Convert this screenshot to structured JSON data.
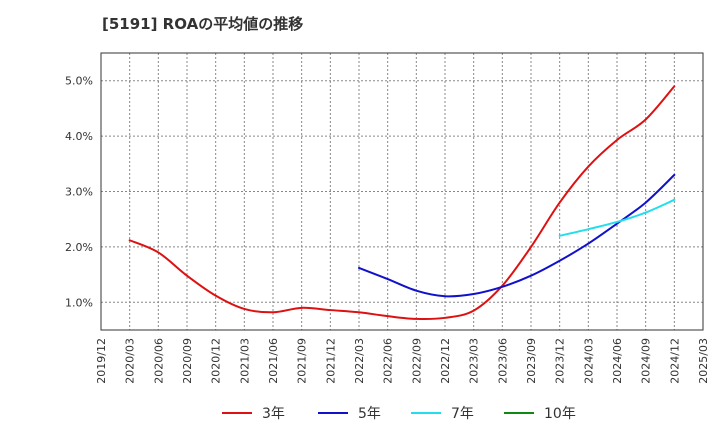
{
  "chart_data": {
    "type": "line",
    "title": "[5191]  ROAの平均値の推移",
    "x_tick_labels": [
      "2019/12",
      "2020/03",
      "2020/06",
      "2020/09",
      "2020/12",
      "2021/03",
      "2021/06",
      "2021/09",
      "2021/12",
      "2022/03",
      "2022/06",
      "2022/09",
      "2022/12",
      "2023/03",
      "2023/06",
      "2023/09",
      "2023/12",
      "2024/03",
      "2024/06",
      "2024/09",
      "2024/12",
      "2025/03"
    ],
    "y_tick_labels": [
      "1.0%",
      "2.0%",
      "3.0%",
      "4.0%",
      "5.0%"
    ],
    "y_ticks": [
      1.0,
      2.0,
      3.0,
      4.0,
      5.0
    ],
    "xlim": [
      "2019/12",
      "2025/03"
    ],
    "ylim": [
      0.5,
      5.5
    ],
    "grid": true,
    "legend_position": "bottom",
    "series": [
      {
        "name": "3年",
        "color": "#dd1111",
        "x": [
          "2020/03",
          "2020/06",
          "2020/09",
          "2020/12",
          "2021/03",
          "2021/06",
          "2021/09",
          "2021/12",
          "2022/03",
          "2022/06",
          "2022/09",
          "2022/12",
          "2023/03",
          "2023/06",
          "2023/09",
          "2023/12",
          "2024/03",
          "2024/06",
          "2024/09",
          "2024/12"
        ],
        "values": [
          2.12,
          1.9,
          1.48,
          1.12,
          0.88,
          0.82,
          0.9,
          0.86,
          0.82,
          0.75,
          0.7,
          0.72,
          0.85,
          1.3,
          2.0,
          2.8,
          3.45,
          3.93,
          4.3,
          4.9
        ]
      },
      {
        "name": "5年",
        "color": "#1111cc",
        "x": [
          "2022/03",
          "2022/06",
          "2022/09",
          "2022/12",
          "2023/03",
          "2023/06",
          "2023/09",
          "2023/12",
          "2024/03",
          "2024/06",
          "2024/09",
          "2024/12"
        ],
        "values": [
          1.62,
          1.42,
          1.21,
          1.11,
          1.15,
          1.28,
          1.48,
          1.75,
          2.06,
          2.42,
          2.8,
          3.3
        ]
      },
      {
        "name": "7年",
        "color": "#22ddee",
        "x": [
          "2023/12",
          "2024/03",
          "2024/06",
          "2024/09",
          "2024/12"
        ],
        "values": [
          2.2,
          2.32,
          2.45,
          2.62,
          2.85
        ]
      },
      {
        "name": "10年",
        "color": "#118811",
        "x": [],
        "values": []
      }
    ]
  }
}
